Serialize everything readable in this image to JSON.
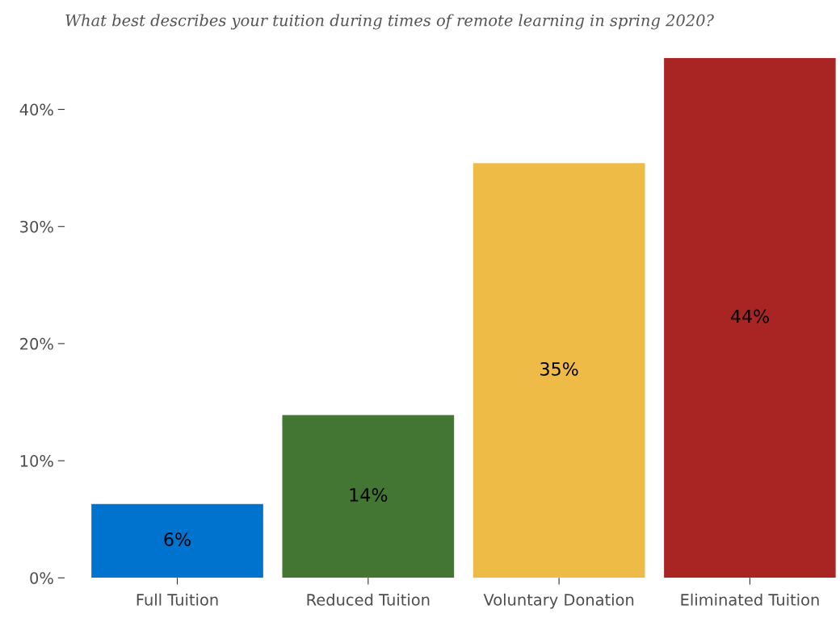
{
  "chart_data": {
    "type": "bar",
    "title": "What best describes your tuition during times of remote learning in spring 2020?",
    "categories": [
      "Full Tuition",
      "Reduced Tuition",
      "Voluntary Donation",
      "Eliminated Tuition"
    ],
    "values": [
      6.3,
      13.9,
      35.4,
      44.4
    ],
    "value_labels": [
      "6%",
      "14%",
      "35%",
      "44%"
    ],
    "colors": [
      "#0073cf",
      "#437632",
      "#eebb47",
      "#a92523"
    ],
    "ylim": [
      0,
      44.4
    ],
    "yticks": [
      {
        "value": 0,
        "label": "0%"
      },
      {
        "value": 10,
        "label": "10%"
      },
      {
        "value": 20,
        "label": "20%"
      },
      {
        "value": 30,
        "label": "30%"
      },
      {
        "value": 40,
        "label": "40%"
      }
    ],
    "grid": false,
    "legend": false
  }
}
